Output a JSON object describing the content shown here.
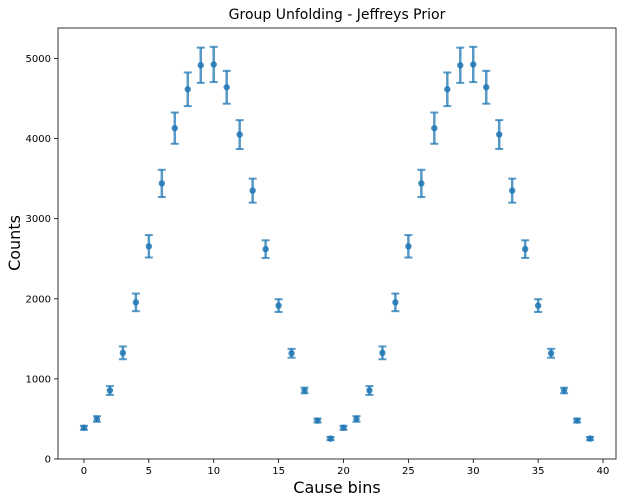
{
  "chart_data": {
    "type": "scatter",
    "title": "Group Unfolding - Jeffreys Prior",
    "xlabel": "Cause bins",
    "ylabel": "Counts",
    "xlim": [
      -2,
      41
    ],
    "ylim": [
      0,
      5380
    ],
    "xticks": [
      0,
      5,
      10,
      15,
      20,
      25,
      30,
      35,
      40
    ],
    "yticks": [
      0,
      1000,
      2000,
      3000,
      4000,
      5000
    ],
    "grid": false,
    "color": "#1f77b4",
    "series": [
      {
        "x": [
          0,
          1,
          2,
          3,
          4,
          5,
          6,
          7,
          8,
          9,
          10,
          11,
          12,
          13,
          14,
          15,
          16,
          17,
          18,
          19,
          20,
          21,
          22,
          23,
          24,
          25,
          26,
          27,
          28,
          29,
          30,
          31,
          32,
          33,
          34,
          35,
          36,
          37,
          38,
          39
        ],
        "y": [
          390,
          500,
          855,
          1325,
          1955,
          2655,
          3440,
          4130,
          4615,
          4915,
          4925,
          4640,
          4050,
          3350,
          2620,
          1915,
          1320,
          855,
          480,
          255,
          390,
          500,
          855,
          1325,
          1955,
          2655,
          3440,
          4130,
          4615,
          4915,
          4925,
          4640,
          4050,
          3350,
          2620,
          1915,
          1320,
          855,
          480,
          255
        ],
        "yerr": [
          25,
          35,
          55,
          80,
          110,
          140,
          170,
          195,
          210,
          220,
          220,
          205,
          180,
          150,
          110,
          80,
          55,
          35,
          25,
          20,
          25,
          35,
          55,
          80,
          110,
          140,
          170,
          195,
          210,
          220,
          220,
          205,
          180,
          150,
          110,
          80,
          55,
          35,
          25,
          20
        ]
      }
    ]
  }
}
